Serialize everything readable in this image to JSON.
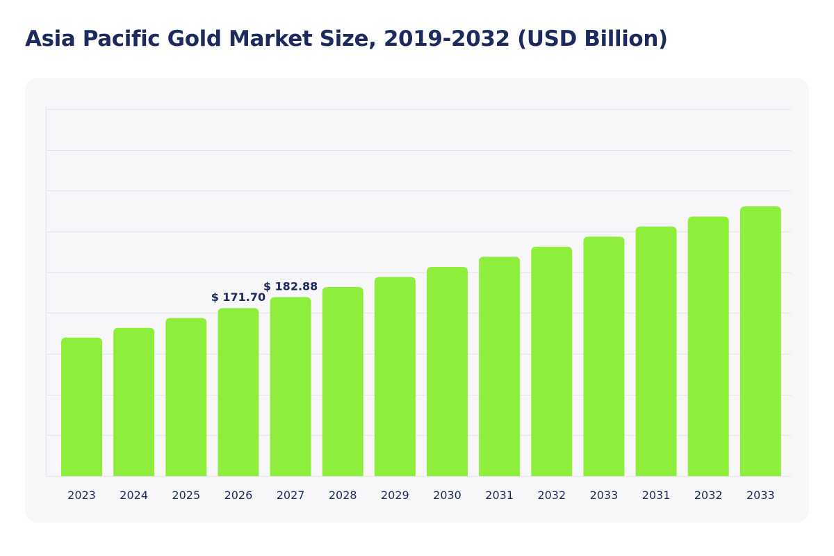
{
  "chart_data": {
    "type": "bar",
    "title": "Asia Pacific Gold Market Size, 2019-2032 (USD Billion)",
    "xlabel": "",
    "ylabel": "",
    "categories": [
      "2023",
      "2024",
      "2025",
      "2026",
      "2027",
      "2028",
      "2029",
      "2030",
      "2031",
      "2032",
      "2033",
      "2031",
      "2032",
      "2033"
    ],
    "values": [
      141.5,
      151.5,
      161.6,
      171.7,
      182.88,
      193.2,
      203.5,
      213.8,
      224.1,
      234.4,
      244.7,
      255.0,
      265.3,
      275.6
    ],
    "data_labels": [
      "",
      "",
      "",
      "$ 171.70",
      "$ 182.88",
      "",
      "",
      "",
      "",
      "",
      "",
      "",
      "",
      ""
    ],
    "ylim": [
      0,
      375
    ],
    "y_grid_values": [
      0,
      41.7,
      83.3,
      125,
      166.7,
      208.3,
      250,
      291.7,
      333.3,
      375
    ],
    "grid": true,
    "bar_color": "#8def3b",
    "grid_color": "#e4e4e9",
    "text_color": "#1d2a5e"
  }
}
